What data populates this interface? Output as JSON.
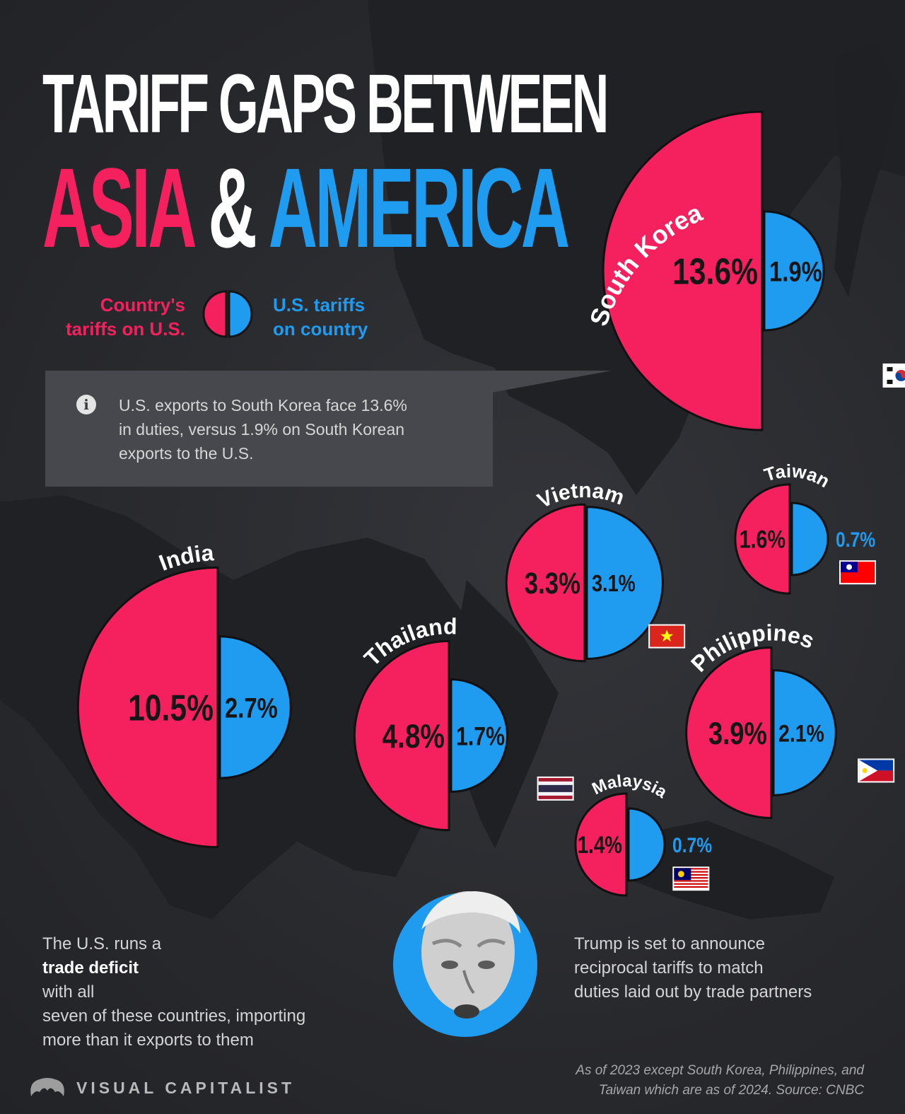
{
  "header": {
    "title_line1": "TARIFF GAPS BETWEEN",
    "title_word_asia": "ASIA ",
    "title_ampersand": "& ",
    "title_word_america": "AMERICA"
  },
  "legend": {
    "left_line1": "Country's",
    "left_line2": "tariffs on U.S.",
    "right_line1": "U.S. tariffs",
    "right_line2": "on country"
  },
  "callout": {
    "line1": "U.S. exports to South Korea face 13.6%",
    "line2": "in duties, versus 1.9% on South Korean",
    "line3": "exports to the U.S."
  },
  "notes": {
    "left_line1_a": "The U.S. runs a ",
    "left_line1_bold": "trade deficit",
    "left_line1_b": " with all",
    "left_line2": "seven of these countries, importing",
    "left_line3": "more than it exports to them",
    "right_line1": "Trump is set to announce",
    "right_line2": "reciprocal tariffs to match",
    "right_line3": "duties laid out by trade partners"
  },
  "footer": {
    "brand": "VISUAL CAPITALIST",
    "note_line1": "As of 2023 except South Korea, Philippines, and",
    "note_line2": "Taiwan which are as of 2024. Source: CNBC"
  },
  "colors": {
    "country_tariff": "#f5215f",
    "us_tariff": "#1f9bf0",
    "background": "#2b2c30"
  },
  "chart_data": {
    "type": "split-semicircle-bubbles",
    "series": [
      {
        "name": "Country's tariffs on U.S.",
        "color": "#f5215f"
      },
      {
        "name": "U.S. tariffs on country",
        "color": "#1f9bf0"
      }
    ],
    "countries": [
      {
        "name": "South Korea",
        "flag": "south-korea-flag-icon",
        "country_tariff": 13.6,
        "us_tariff": 1.9,
        "country_label": "13.6%",
        "us_label": "1.9%"
      },
      {
        "name": "India",
        "flag": "india-flag-icon",
        "country_tariff": 10.5,
        "us_tariff": 2.7,
        "country_label": "10.5%",
        "us_label": "2.7%"
      },
      {
        "name": "Thailand",
        "flag": "thailand-flag-icon",
        "country_tariff": 4.8,
        "us_tariff": 1.7,
        "country_label": "4.8%",
        "us_label": "1.7%"
      },
      {
        "name": "Vietnam",
        "flag": "vietnam-flag-icon",
        "country_tariff": 3.3,
        "us_tariff": 3.1,
        "country_label": "3.3%",
        "us_label": "3.1%"
      },
      {
        "name": "Taiwan",
        "flag": "taiwan-flag-icon",
        "country_tariff": 1.6,
        "us_tariff": 0.7,
        "country_label": "1.6%",
        "us_label": "0.7%"
      },
      {
        "name": "Philippines",
        "flag": "philippines-flag-icon",
        "country_tariff": 3.9,
        "us_tariff": 2.1,
        "country_label": "3.9%",
        "us_label": "2.1%"
      },
      {
        "name": "Malaysia",
        "flag": "malaysia-flag-icon",
        "country_tariff": 1.4,
        "us_tariff": 0.7,
        "country_label": "1.4%",
        "us_label": "0.7%"
      }
    ]
  }
}
